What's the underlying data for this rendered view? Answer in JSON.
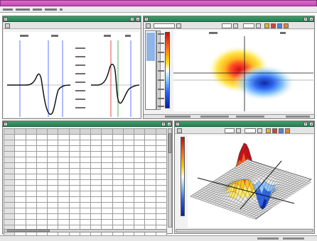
{
  "app": {
    "title": "",
    "menus": [
      {
        "label": ""
      },
      {
        "label": ""
      },
      {
        "label": ""
      },
      {
        "label": ""
      },
      {
        "label": ""
      }
    ]
  },
  "colors": {
    "app_title_bar": "#c94fb8",
    "window_title_bar": "#2b7f52",
    "waveform_trace": "#111111",
    "marker_blue": "#3a55ff",
    "marker_red": "#e02020",
    "marker_green": "#1aa52a"
  },
  "windows": {
    "waveform": {
      "title": ""
    },
    "map": {
      "title": ""
    },
    "table": {
      "title": "",
      "visible_rows": 19,
      "visible_columns": 15
    },
    "surface": {
      "title": ""
    }
  },
  "icons": [
    "window-close-icon",
    "window-minimize-icon",
    "window-maximize-icon",
    "toolbar-tool-icon",
    "dropdown-arrow-icon",
    "color-scale-icon"
  ]
}
